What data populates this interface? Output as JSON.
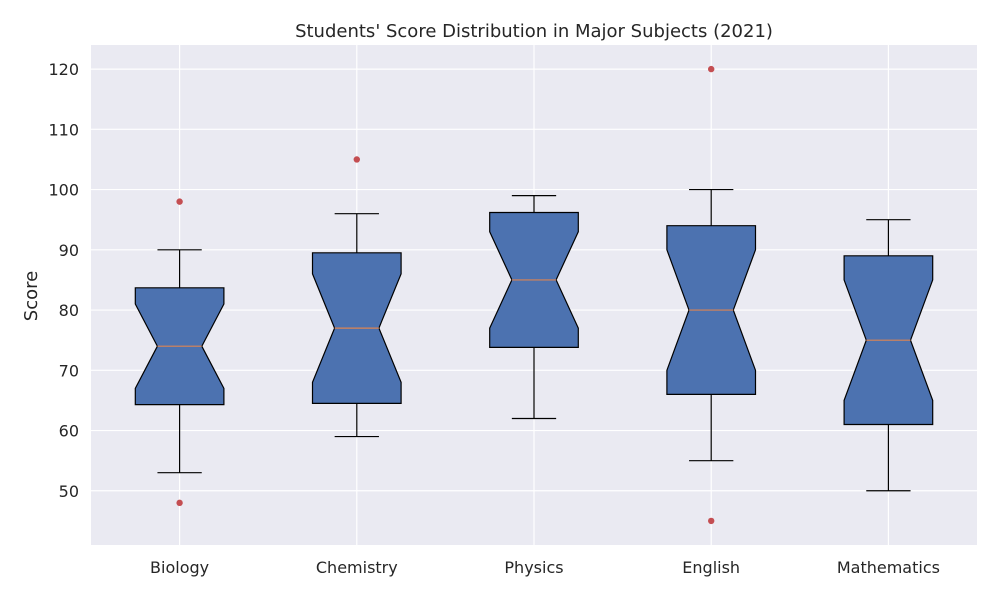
{
  "chart_data": {
    "type": "boxplot",
    "notched": true,
    "title": "Students' Score Distribution in Major Subjects (2021)",
    "xlabel": "",
    "ylabel": "Score",
    "ylim": [
      41,
      124
    ],
    "yticks": [
      50,
      60,
      70,
      80,
      90,
      100,
      110,
      120
    ],
    "grid": true,
    "categories": [
      "Biology",
      "Chemistry",
      "Physics",
      "English",
      "Mathematics"
    ],
    "boxes": [
      {
        "category": "Biology",
        "whisker_low": 53,
        "q1": 67,
        "median": 74,
        "q3": 81,
        "whisker_high": 90,
        "notch_low": 64.3,
        "notch_high": 83.7,
        "outliers": [
          48,
          98
        ]
      },
      {
        "category": "Chemistry",
        "whisker_low": 59,
        "q1": 68,
        "median": 77,
        "q3": 86,
        "whisker_high": 96,
        "notch_low": 64.5,
        "notch_high": 89.5,
        "outliers": [
          105
        ]
      },
      {
        "category": "Physics",
        "whisker_low": 62,
        "q1": 77,
        "median": 85,
        "q3": 93,
        "whisker_high": 99,
        "notch_low": 73.8,
        "notch_high": 96.2,
        "outliers": []
      },
      {
        "category": "English",
        "whisker_low": 55,
        "q1": 70,
        "median": 80,
        "q3": 90,
        "whisker_high": 100,
        "notch_low": 66,
        "notch_high": 94,
        "outliers": [
          45,
          120
        ]
      },
      {
        "category": "Mathematics",
        "whisker_low": 50,
        "q1": 65,
        "median": 75,
        "q3": 85,
        "whisker_high": 95,
        "notch_low": 61,
        "notch_high": 89,
        "outliers": []
      }
    ],
    "colors": {
      "box_fill": "#4c72b0",
      "median": "#dd8452",
      "outlier": "#c44e52",
      "plot_background": "#eaeaf2",
      "grid": "#ffffff"
    }
  }
}
